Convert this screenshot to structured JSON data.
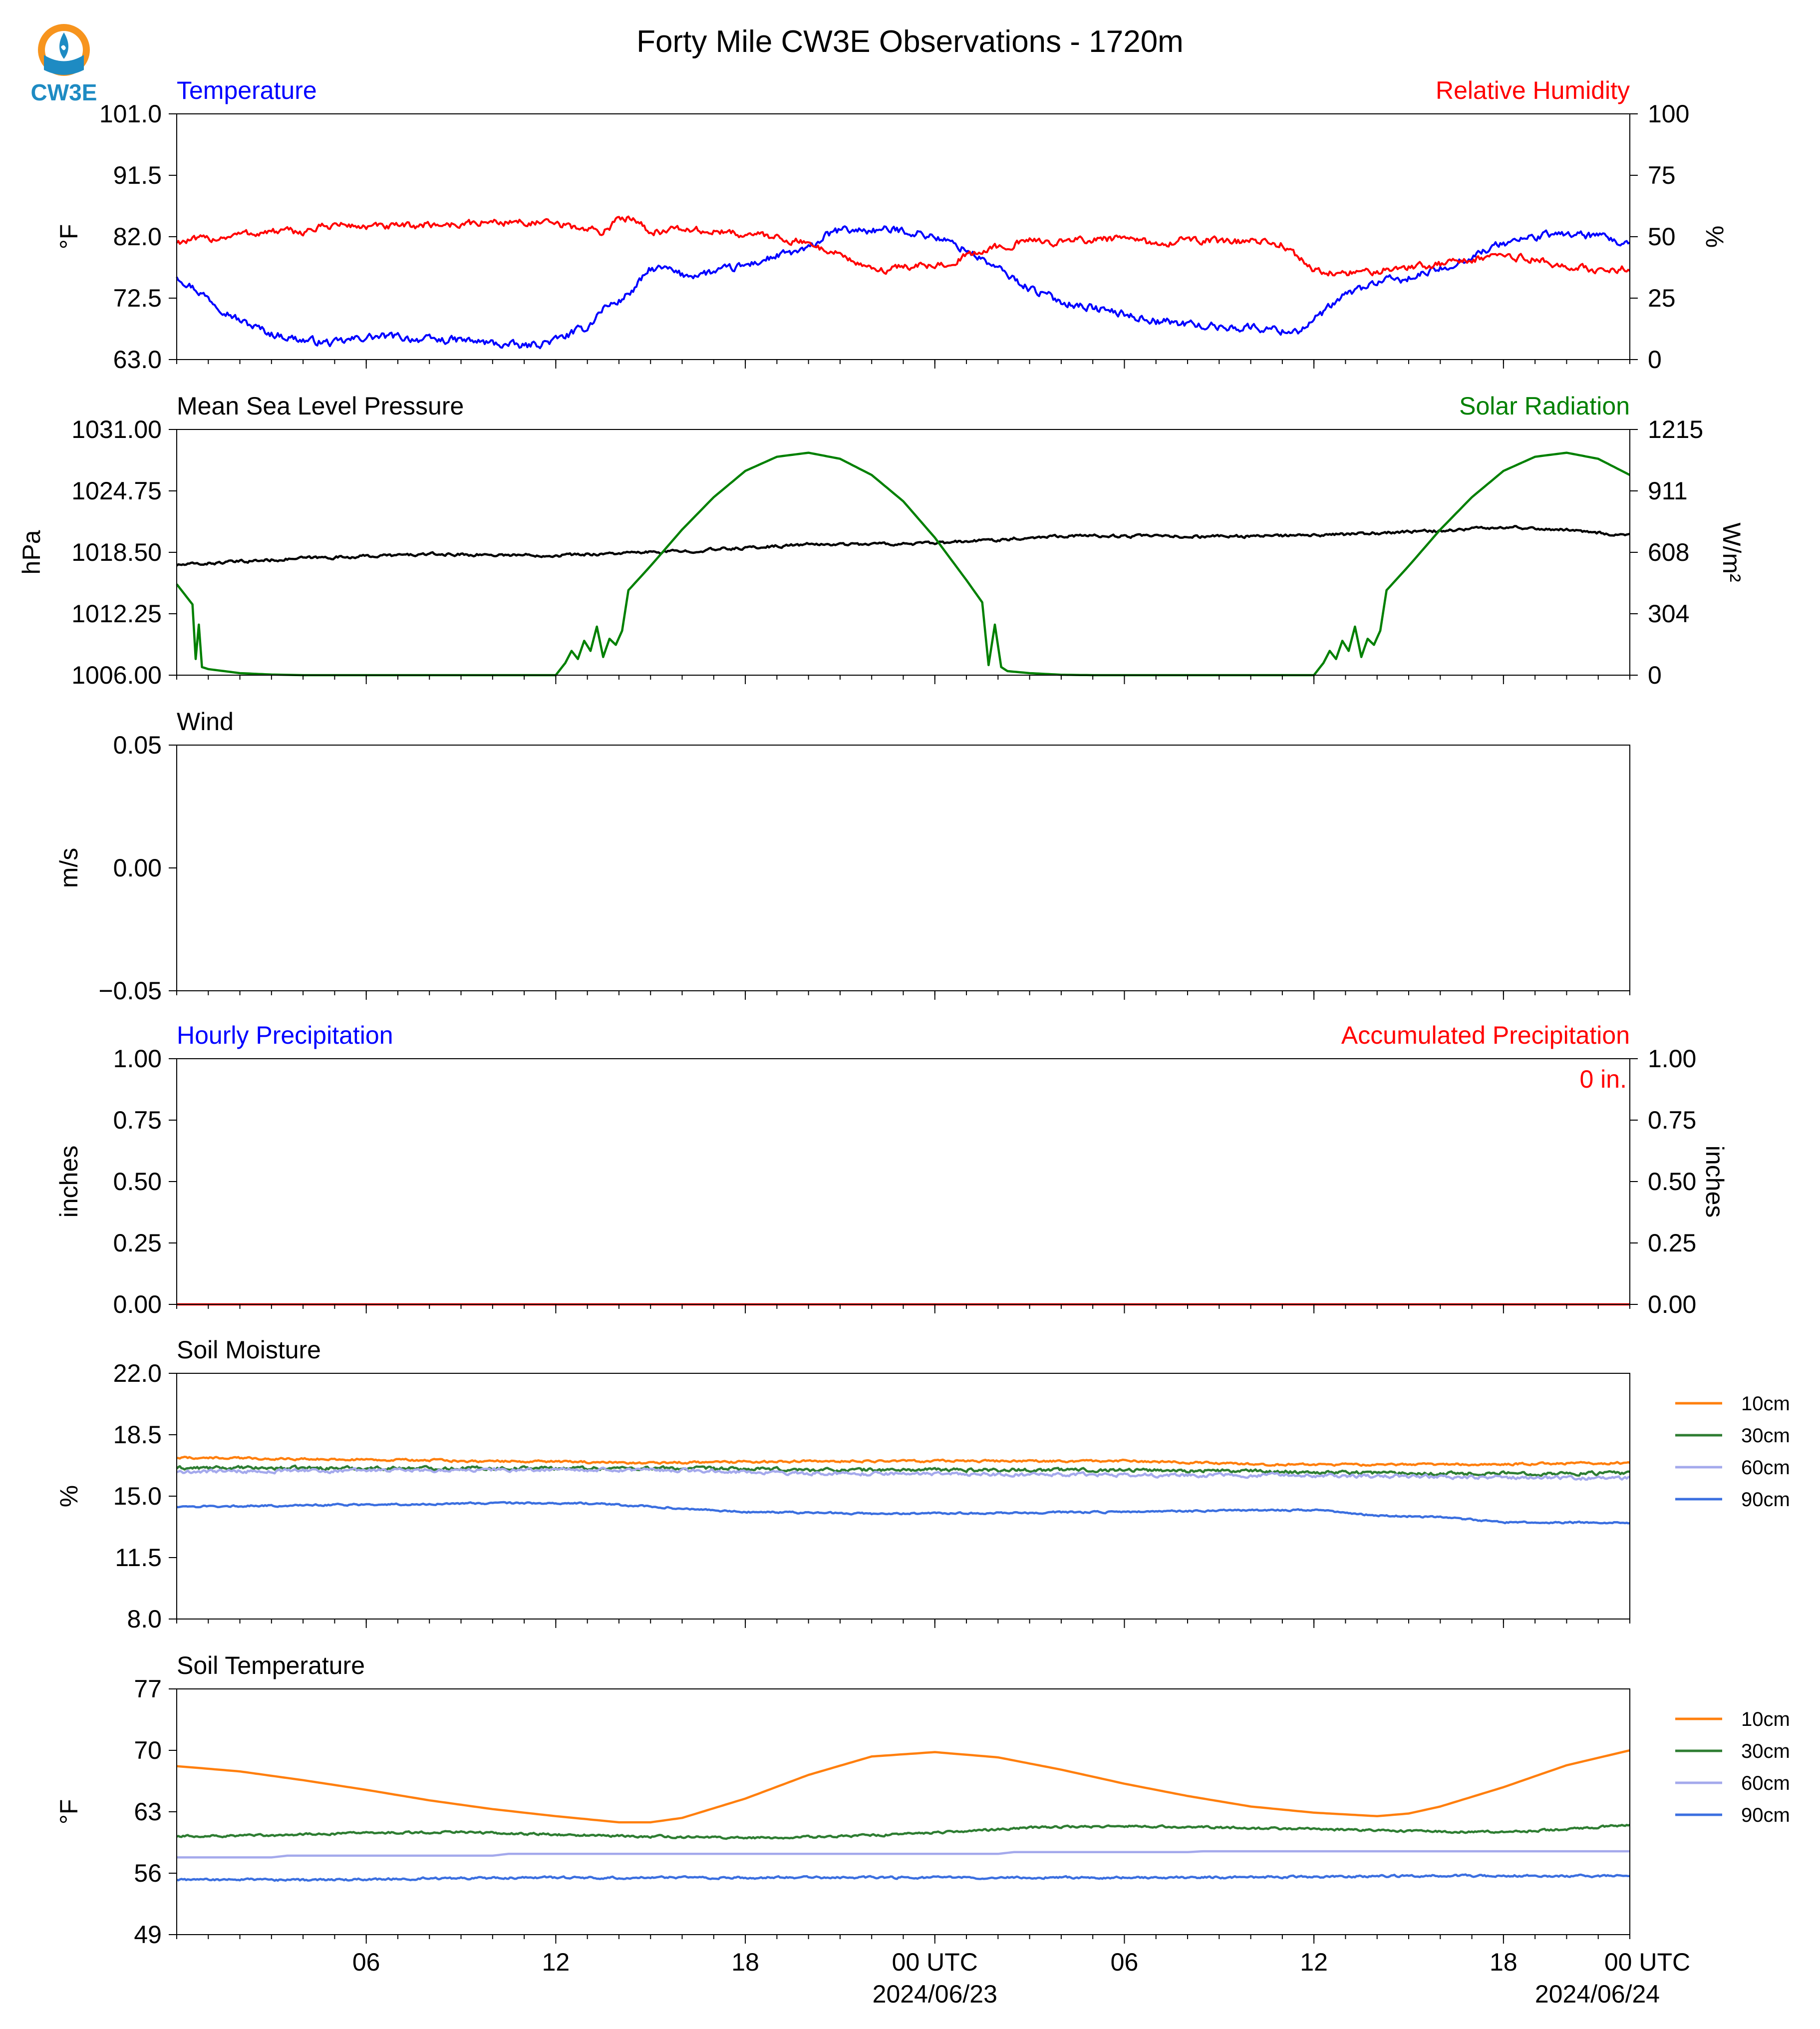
{
  "title": "Forty Mile CW3E Observations - 1720m",
  "logo": {
    "text": "CW3E",
    "colors": {
      "ring": "#f7941d",
      "drop": "#1e8bc3"
    }
  },
  "x_axis": {
    "range_hours": [
      0,
      46
    ],
    "tick_hours": [
      6,
      12,
      18,
      24,
      30,
      36,
      42,
      48
    ],
    "tick_labels": [
      "06",
      "12",
      "18",
      "00 UTC",
      "06",
      "12",
      "18",
      "00 UTC"
    ],
    "date_labels": [
      {
        "hour": 24,
        "text": "2024/06/23"
      },
      {
        "hour": 48,
        "text": "2024/06/24"
      }
    ],
    "minor_tick_step_hours": 1
  },
  "chart_data": [
    {
      "id": "temp-rh",
      "type": "line",
      "title_left": "Temperature",
      "title_left_color": "#0000ff",
      "title_right": "Relative Humidity",
      "title_right_color": "#ff0000",
      "ylabel": "°F",
      "ylabel_right": "%",
      "ylim": [
        63.0,
        101.0
      ],
      "yticks": [
        "63.0",
        "72.5",
        "82.0",
        "91.5",
        "101.0"
      ],
      "ylim_right": [
        0,
        100
      ],
      "yticks_right": [
        "0",
        "25",
        "50",
        "75",
        "100"
      ],
      "series": [
        {
          "axis": "left",
          "color": "#0000ff",
          "noise": 0.5,
          "x": [
            0,
            1,
            2,
            3,
            4,
            5,
            6,
            7,
            8,
            9,
            10,
            11,
            12,
            13,
            13.5,
            14,
            14.5,
            15,
            15.5,
            16,
            17,
            18,
            19,
            20,
            20.5,
            21,
            22,
            23,
            24,
            25,
            26,
            27,
            28,
            29,
            30,
            31,
            32,
            33,
            34,
            35,
            35.5,
            36,
            37,
            38,
            39,
            40,
            41,
            42,
            43,
            44,
            45,
            46
          ],
          "y": [
            76,
            72.5,
            69,
            67,
            66,
            65.5,
            66.5,
            66.5,
            66,
            66,
            65.5,
            65,
            66,
            68,
            71,
            72,
            74,
            77,
            77,
            76,
            76.5,
            77.5,
            79,
            80,
            82,
            83,
            83,
            83,
            82,
            80,
            77,
            74,
            72,
            71,
            70,
            69,
            68.5,
            68,
            68,
            67.5,
            67.5,
            69,
            73,
            75,
            75.5,
            77,
            79,
            81,
            82,
            82.5,
            82,
            80.5
          ]
        },
        {
          "axis": "right",
          "color": "#ff0000",
          "noise": 1.2,
          "x": [
            0,
            1,
            2,
            3,
            4,
            5,
            6,
            7,
            8,
            9,
            10,
            11,
            12,
            13,
            13.5,
            14,
            14.5,
            15,
            16,
            17,
            18,
            19,
            20,
            21,
            22,
            23,
            24,
            25,
            26,
            27,
            28,
            29,
            30,
            31,
            32,
            33,
            34,
            35,
            36,
            37,
            38,
            39,
            40,
            41,
            42,
            43,
            44,
            45,
            46
          ],
          "y": [
            48,
            49,
            51,
            52,
            52,
            55,
            54,
            54,
            55,
            55,
            56,
            56,
            55,
            53,
            52,
            57,
            58,
            52,
            53,
            52,
            51,
            50,
            47,
            43,
            36,
            38,
            38,
            42,
            46,
            48,
            48,
            49,
            49,
            47,
            49,
            48,
            48,
            47,
            36,
            35,
            36,
            38,
            39,
            41,
            42,
            41,
            37,
            37,
            37
          ]
        }
      ]
    },
    {
      "id": "pressure-solar",
      "type": "line",
      "title_left": "Mean Sea Level Pressure",
      "title_left_color": "#000000",
      "title_right": "Solar Radiation",
      "title_right_color": "#008000",
      "ylabel": "hPa",
      "ylabel_right": "W/m²",
      "ylim": [
        1006.0,
        1031.0
      ],
      "yticks": [
        "1006.00",
        "1012.25",
        "1018.50",
        "1024.75",
        "1031.00"
      ],
      "ylim_right": [
        0,
        1215
      ],
      "yticks_right": [
        "0",
        "304",
        "608",
        "911",
        "1215"
      ],
      "series": [
        {
          "axis": "left",
          "color": "#000000",
          "noise": 0.12,
          "x": [
            0,
            4,
            8,
            12,
            16,
            20,
            24,
            28,
            32,
            36,
            40,
            42,
            44,
            46
          ],
          "y": [
            1017.2,
            1017.9,
            1018.3,
            1018.2,
            1018.6,
            1019.3,
            1019.4,
            1020.2,
            1020.1,
            1020.2,
            1020.7,
            1021.1,
            1020.8,
            1020.2
          ]
        },
        {
          "axis": "right",
          "color": "#008000",
          "noise": 0,
          "x": [
            0,
            0.5,
            0.6,
            0.7,
            0.8,
            1,
            2,
            3,
            4,
            11,
            12,
            12.3,
            12.5,
            12.7,
            12.9,
            13.1,
            13.3,
            13.5,
            13.7,
            13.9,
            14.1,
            14.3,
            15,
            16,
            17,
            18,
            19,
            20,
            21,
            22,
            23,
            24,
            25,
            25.5,
            25.7,
            25.9,
            26.1,
            26.3,
            27,
            28,
            29,
            36,
            36.3,
            36.5,
            36.7,
            36.9,
            37.1,
            37.3,
            37.5,
            37.7,
            37.9,
            38.1,
            38.3,
            39,
            40,
            41,
            42,
            43,
            44,
            45,
            46
          ],
          "y": [
            450,
            350,
            80,
            250,
            40,
            30,
            10,
            3,
            0,
            0,
            0,
            60,
            120,
            80,
            170,
            120,
            240,
            90,
            180,
            150,
            220,
            420,
            540,
            720,
            880,
            1010,
            1080,
            1100,
            1070,
            990,
            860,
            680,
            470,
            360,
            50,
            250,
            40,
            20,
            10,
            2,
            0,
            0,
            60,
            120,
            80,
            170,
            120,
            240,
            90,
            180,
            150,
            220,
            420,
            540,
            720,
            880,
            1010,
            1080,
            1100,
            1070,
            990
          ]
        }
      ]
    },
    {
      "id": "wind",
      "type": "line",
      "title_left": "Wind",
      "title_left_color": "#000000",
      "ylabel": "m/s",
      "ylim": [
        -0.055,
        0.055
      ],
      "yticks": [
        "−0.05",
        "0.00",
        "0.05"
      ],
      "series": []
    },
    {
      "id": "precip",
      "type": "line",
      "title_left": "Hourly Precipitation",
      "title_left_color": "#0000ff",
      "title_right": "Accumulated Precipitation",
      "title_right_color": "#ff0000",
      "ylabel": "inches",
      "ylabel_right": "inches",
      "annotation": "0 in.",
      "annotation_color": "#ff0000",
      "ylim": [
        0.0,
        1.0
      ],
      "yticks": [
        "0.00",
        "0.25",
        "0.50",
        "0.75",
        "1.00"
      ],
      "ylim_right": [
        0.0,
        1.0
      ],
      "yticks_right": [
        "0.00",
        "0.25",
        "0.50",
        "0.75",
        "1.00"
      ],
      "series": [
        {
          "axis": "right",
          "color": "#ff0000",
          "noise": 0,
          "x": [
            0,
            46
          ],
          "y": [
            0,
            0
          ]
        }
      ]
    },
    {
      "id": "soil-moisture",
      "type": "line",
      "title_left": "Soil Moisture",
      "title_left_color": "#000000",
      "ylabel": "%",
      "ylim": [
        8.0,
        22.0
      ],
      "yticks": [
        "8.0",
        "11.5",
        "15.0",
        "18.5",
        "22.0"
      ],
      "legend": [
        "10cm",
        "30cm",
        "60cm",
        "90cm"
      ],
      "series": [
        {
          "name": "10cm",
          "axis": "left",
          "color": "#ff7f0e",
          "noise": 0.05,
          "x": [
            0,
            10,
            15,
            20,
            30,
            35,
            40,
            46
          ],
          "y": [
            17.2,
            17.0,
            16.9,
            17.0,
            17.0,
            16.8,
            16.8,
            16.9
          ]
        },
        {
          "name": "30cm",
          "axis": "left",
          "color": "#2e7d32",
          "noise": 0.08,
          "x": [
            0,
            10,
            15,
            20,
            30,
            35,
            40,
            46
          ],
          "y": [
            16.6,
            16.6,
            16.6,
            16.5,
            16.5,
            16.4,
            16.3,
            16.3
          ]
        },
        {
          "name": "60cm",
          "axis": "left",
          "color": "#a4a9ec",
          "noise": 0.08,
          "x": [
            0,
            10,
            15,
            20,
            30,
            35,
            40,
            46
          ],
          "y": [
            16.4,
            16.5,
            16.5,
            16.3,
            16.2,
            16.2,
            16.1,
            16.0
          ]
        },
        {
          "name": "90cm",
          "axis": "left",
          "color": "#3b6fe0",
          "noise": 0.04,
          "x": [
            0,
            5,
            10,
            13,
            15,
            18,
            22,
            30,
            34,
            36,
            38,
            40,
            42,
            46
          ],
          "y": [
            14.4,
            14.5,
            14.6,
            14.6,
            14.4,
            14.1,
            14.0,
            14.1,
            14.2,
            14.2,
            13.9,
            13.8,
            13.5,
            13.5
          ]
        }
      ]
    },
    {
      "id": "soil-temperature",
      "type": "line",
      "title_left": "Soil Temperature",
      "title_left_color": "#000000",
      "ylabel": "°F",
      "ylim": [
        49,
        77
      ],
      "yticks": [
        "49",
        "56",
        "63",
        "70",
        "77"
      ],
      "legend": [
        "10cm",
        "30cm",
        "60cm",
        "90cm"
      ],
      "series": [
        {
          "name": "10cm",
          "axis": "left",
          "color": "#ff7f0e",
          "noise": 0,
          "x": [
            0,
            2,
            4,
            6,
            8,
            10,
            12,
            14,
            15,
            16,
            18,
            20,
            22,
            24,
            26,
            28,
            30,
            32,
            34,
            36,
            38,
            39,
            40,
            42,
            44,
            46
          ],
          "y": [
            68.2,
            67.6,
            66.6,
            65.5,
            64.3,
            63.3,
            62.5,
            61.8,
            61.8,
            62.3,
            64.5,
            67.2,
            69.3,
            69.8,
            69.2,
            67.8,
            66.2,
            64.8,
            63.6,
            62.9,
            62.5,
            62.8,
            63.6,
            65.8,
            68.3,
            70.0
          ]
        },
        {
          "name": "30cm",
          "axis": "left",
          "color": "#2e7d32",
          "noise": 0.1,
          "x": [
            0,
            3,
            6,
            9,
            12,
            15,
            18,
            21,
            24,
            27,
            30,
            33,
            36,
            39,
            42,
            44,
            46
          ],
          "y": [
            60.2,
            60.3,
            60.6,
            60.7,
            60.4,
            60.2,
            60.0,
            60.2,
            60.6,
            61.2,
            61.4,
            61.2,
            61.0,
            60.8,
            60.7,
            61.0,
            61.5
          ]
        },
        {
          "name": "60cm",
          "axis": "left",
          "color": "#a4a9ec",
          "noise": 0,
          "x": [
            0,
            3,
            3.5,
            10,
            10.5,
            26,
            26.5,
            32,
            32.5,
            46
          ],
          "y": [
            57.8,
            57.8,
            58.0,
            58.0,
            58.2,
            58.2,
            58.4,
            58.4,
            58.5,
            58.5
          ]
        },
        {
          "name": "90cm",
          "axis": "left",
          "color": "#3b6fe0",
          "noise": 0.1,
          "x": [
            0,
            4,
            8,
            12,
            16,
            20,
            24,
            28,
            32,
            36,
            40,
            46
          ],
          "y": [
            55.3,
            55.2,
            55.4,
            55.5,
            55.5,
            55.5,
            55.5,
            55.5,
            55.5,
            55.6,
            55.7,
            55.7
          ]
        }
      ]
    }
  ]
}
